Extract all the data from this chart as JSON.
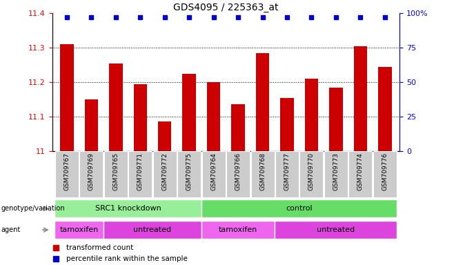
{
  "title": "GDS4095 / 225363_at",
  "samples": [
    "GSM709767",
    "GSM709769",
    "GSM709765",
    "GSM709771",
    "GSM709772",
    "GSM709775",
    "GSM709764",
    "GSM709766",
    "GSM709768",
    "GSM709777",
    "GSM709770",
    "GSM709773",
    "GSM709774",
    "GSM709776"
  ],
  "bar_values": [
    11.31,
    11.15,
    11.255,
    11.195,
    11.085,
    11.225,
    11.2,
    11.135,
    11.285,
    11.155,
    11.21,
    11.185,
    11.305,
    11.245
  ],
  "bar_color": "#cc0000",
  "percentile_color": "#0000cc",
  "ylim_left": [
    11.0,
    11.4
  ],
  "ylim_right": [
    0,
    100
  ],
  "yticks_left": [
    11.0,
    11.1,
    11.2,
    11.3,
    11.4
  ],
  "ytick_labels_left": [
    "11",
    "11.1",
    "11.2",
    "11.3",
    "11.4"
  ],
  "yticks_right": [
    0,
    25,
    50,
    75,
    100
  ],
  "ytick_labels_right": [
    "0",
    "25",
    "50",
    "75",
    "100%"
  ],
  "grid_values": [
    11.1,
    11.2,
    11.3
  ],
  "genotype_groups": [
    {
      "label": "SRC1 knockdown",
      "start": 0,
      "end": 6,
      "color": "#99ee99"
    },
    {
      "label": "control",
      "start": 6,
      "end": 14,
      "color": "#66dd66"
    }
  ],
  "agent_groups": [
    {
      "label": "tamoxifen",
      "start": 0,
      "end": 2,
      "color": "#ee66ee"
    },
    {
      "label": "untreated",
      "start": 2,
      "end": 6,
      "color": "#dd44dd"
    },
    {
      "label": "tamoxifen",
      "start": 6,
      "end": 9,
      "color": "#ee66ee"
    },
    {
      "label": "untreated",
      "start": 9,
      "end": 14,
      "color": "#dd44dd"
    }
  ],
  "legend_red_label": "transformed count",
  "legend_blue_label": "percentile rank within the sample",
  "background_color": "#ffffff",
  "label_bg_color": "#cccccc",
  "figsize": [
    6.58,
    3.84
  ],
  "dpi": 100
}
